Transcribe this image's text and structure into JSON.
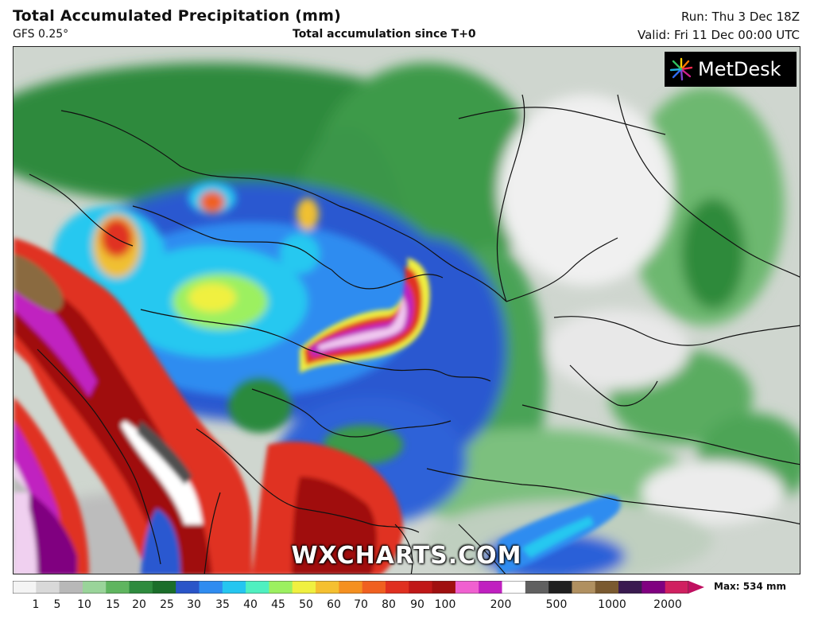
{
  "header": {
    "title": "Total Accumulated Precipitation (mm)",
    "model": "GFS 0.25°",
    "subtitle": "Total accumulation since T+0",
    "run": "Run: Thu 3 Dec 18Z",
    "valid": "Valid: Fri 11 Dec 00:00 UTC"
  },
  "map": {
    "watermark": "WXCHARTS.COM",
    "logo": "MetDesk",
    "logo_icon": "metdesk-burst-icon"
  },
  "legend": {
    "ticks": [
      "1",
      "5",
      "10",
      "15",
      "20",
      "25",
      "30",
      "35",
      "40",
      "45",
      "50",
      "60",
      "70",
      "80",
      "90",
      "100",
      "200",
      "500",
      "1000",
      "2000"
    ],
    "max_label": "Max: 534 mm",
    "colors": [
      "#f4f4f4",
      "#d9d9d9",
      "#b8b8b8",
      "#9ad49a",
      "#5fb55f",
      "#2e8b3e",
      "#1b6e2a",
      "#2a55c8",
      "#2f8cf0",
      "#25c6f0",
      "#4ff0c0",
      "#9cf060",
      "#f0f040",
      "#f5c030",
      "#f59020",
      "#f06020",
      "#e03020",
      "#c01818",
      "#a01010",
      "#f060d0",
      "#c020c0",
      "#ffffff",
      "#606060",
      "#202020",
      "#b09060",
      "#7a5a30",
      "#3a1a50",
      "#800080",
      "#d02060"
    ]
  }
}
